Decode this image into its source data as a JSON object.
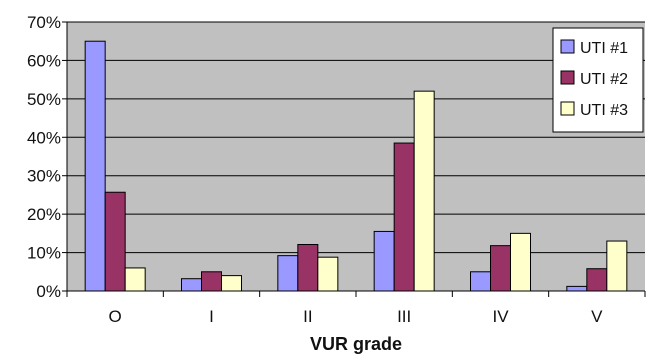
{
  "chart_data": {
    "type": "bar",
    "xlabel": "VUR grade",
    "ylabel": "",
    "categories": [
      "O",
      "I",
      "II",
      "III",
      "IV",
      "V"
    ],
    "ylim": [
      0,
      70
    ],
    "yticks": [
      0,
      10,
      20,
      30,
      40,
      50,
      60,
      70
    ],
    "ytick_format": "percent",
    "grid": true,
    "plot_background": "#c0c0c0",
    "legend_position": "top-right",
    "series": [
      {
        "name": "UTI #1",
        "color": "#9999ff",
        "values": [
          65,
          3.2,
          9.2,
          15.5,
          5,
          1.2
        ]
      },
      {
        "name": "UTI #2",
        "color": "#993366",
        "values": [
          25.7,
          5,
          12.1,
          38.5,
          11.8,
          5.8
        ]
      },
      {
        "name": "UTI #3",
        "color": "#ffffcc",
        "values": [
          6,
          4,
          8.8,
          52,
          15,
          13
        ]
      }
    ]
  }
}
